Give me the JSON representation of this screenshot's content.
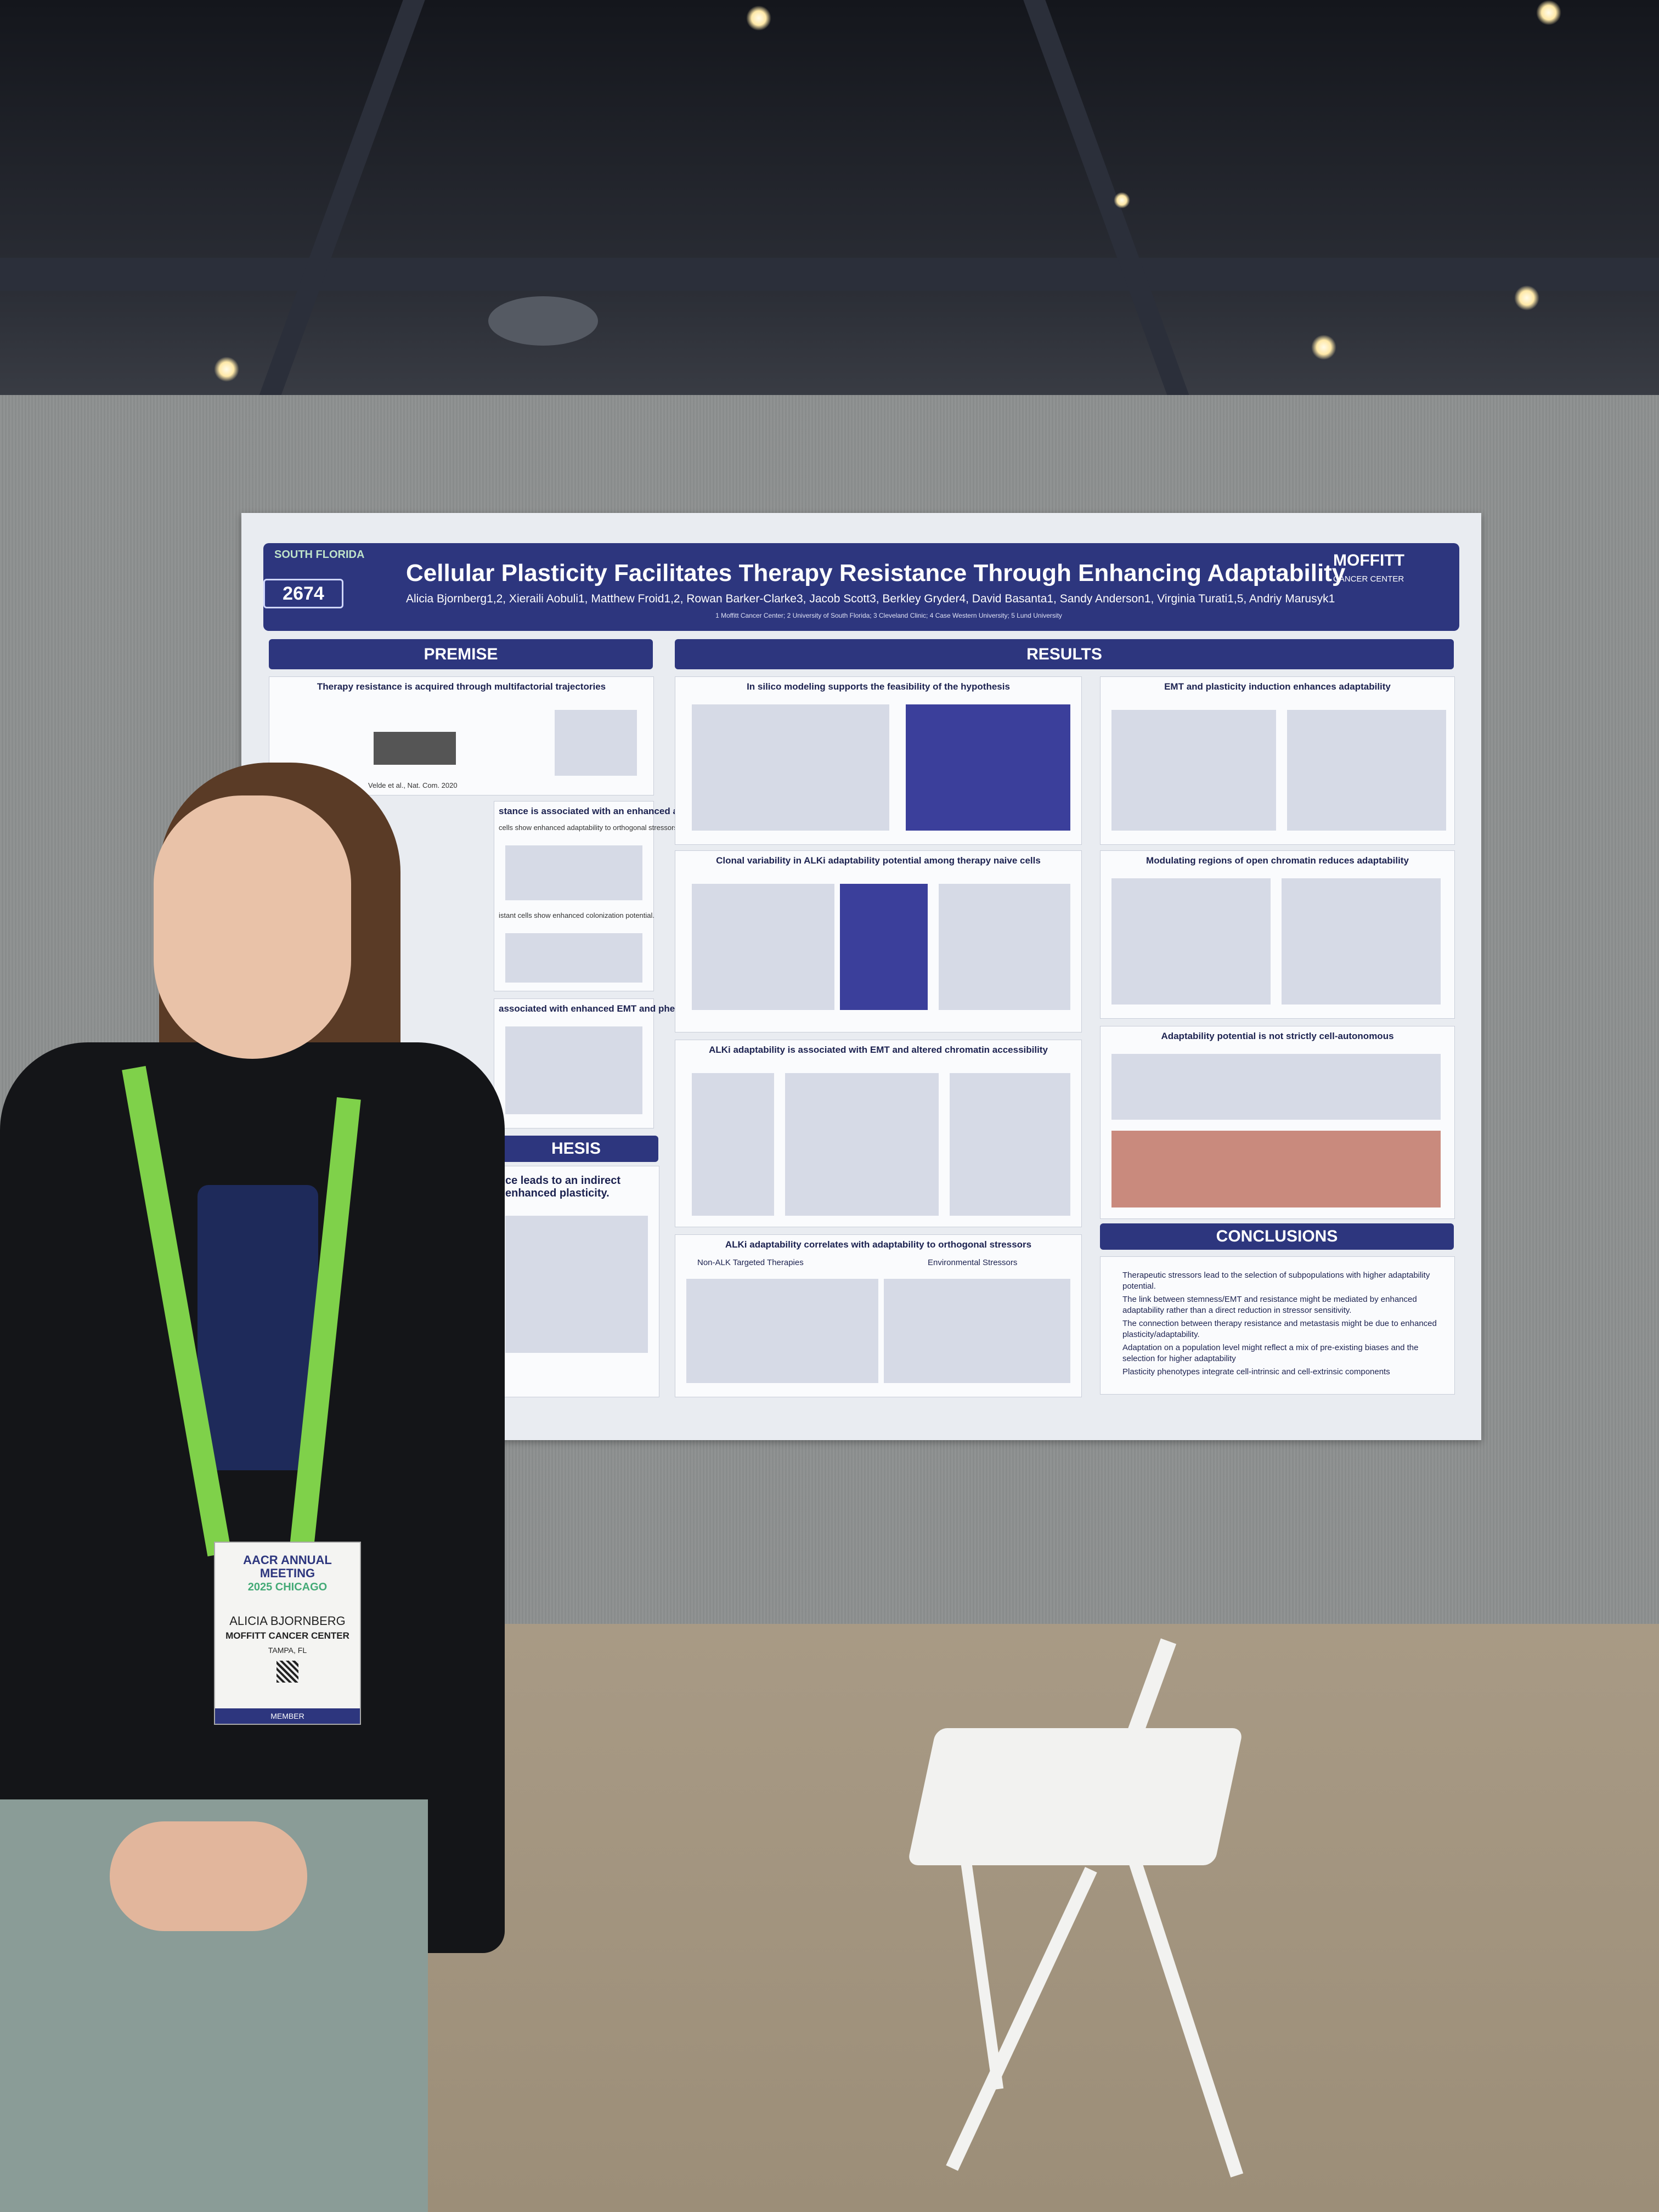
{
  "poster": {
    "number": "2674",
    "title": "Cellular Plasticity Facilitates Therapy Resistance Through Enhancing Adaptability",
    "authors": "Alicia Bjornberg1,2, Xieraili Aobuli1, Matthew Froid1,2, Rowan Barker-Clarke3, Jacob Scott3, Berkley Gryder4, David Basanta1, Sandy Anderson1, Virginia Turati1,5, Andriy Marusyk1",
    "affiliations": "1 Moffitt Cancer Center; 2 University of South Florida; 3 Cleveland Clinic; 4 Case Western University; 5 Lund University",
    "usf_logo": "SOUTH FLORIDA",
    "moffitt_logo": "MOFFITT",
    "moffitt_sub": "CANCER CENTER",
    "sections": {
      "premise": "PREMISE",
      "results": "RESULTS",
      "hypothesis": "HESIS",
      "conclusions": "CONCLUSIONS"
    },
    "premise_panels": [
      "Therapy resistance is acquired through multifactorial trajectories",
      "stance is associated with an enhanced adaptation potential",
      "associated with enhanced EMT and phenotypic entropy"
    ],
    "premise_citation": "Velde et al., Nat. Com. 2020",
    "premise_sub1": "cells show enhanced adaptability to orthogonal stressors.",
    "premise_sub2": "istant cells show enhanced colonization potential.",
    "hypothesis_text": "ce leads to an indirect enhanced plasticity.",
    "results_panels": [
      "In silico modeling supports the feasibility of the hypothesis",
      "EMT and plasticity induction enhances adaptability",
      "Clonal variability in ALKi adaptability potential among therapy naive cells",
      "Modulating regions of open chromatin reduces adaptability",
      "ALKi adaptability is associated with EMT and altered chromatin accessibility",
      "Adaptability potential is not strictly cell-autonomous",
      "ALKi adaptability correlates with adaptability to orthogonal stressors"
    ],
    "orthogonal_sub": [
      "Non-ALK Targeted Therapies",
      "Environmental Stressors"
    ],
    "conclusions": [
      "Therapeutic stressors lead to the selection of subpopulations with higher adaptability potential.",
      "The link between stemness/EMT and resistance might be mediated by enhanced adaptability rather than a direct reduction in stressor sensitivity.",
      "The connection between therapy resistance and metastasis might be due to enhanced plasticity/adaptability.",
      "Adaptation on a population level might reflect a mix of pre-existing biases and the selection for higher adaptability",
      "Plasticity phenotypes integrate cell-intrinsic and cell-extrinsic components"
    ]
  },
  "badge": {
    "meeting": "AACR ANNUAL MEETING",
    "year": "2025 CHICAGO",
    "name": "ALICIA BJORNBERG",
    "org": "MOFFITT CANCER CENTER",
    "city": "TAMPA, FL",
    "type": "MEMBER"
  },
  "colors": {
    "poster_blue": "#2d367e",
    "lanyard_green": "#7fd14a",
    "wall_gray": "#8d9090"
  }
}
